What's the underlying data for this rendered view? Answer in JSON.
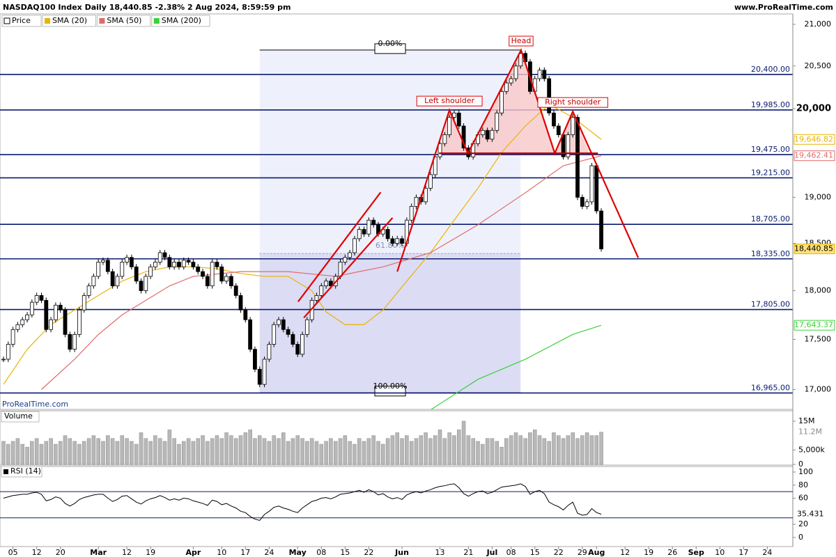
{
  "chart_data": {
    "type": "candlestick",
    "title": "NASDAQ100 Index Daily 18,440.85 -2.38% 2 Aug 2024, 8:59:59 pm",
    "site": "www.ProRealTime.com",
    "watermark": "ProRealTime.com",
    "log": true,
    "ylim": [
      16805,
      21127
    ],
    "yticks": [
      {
        "value": 21000,
        "label": "21,000"
      },
      {
        "value": 20500,
        "label": "20,500"
      },
      {
        "value": 20000,
        "label": "20,000"
      },
      {
        "value": 19000,
        "label": "19,000"
      },
      {
        "value": 18500,
        "label": "18,500"
      },
      {
        "value": 18000,
        "label": "18,000"
      },
      {
        "value": 17500,
        "label": "17,500"
      },
      {
        "value": 17000,
        "label": "17,000"
      }
    ],
    "xticks": [
      {
        "value": 2,
        "label": "05"
      },
      {
        "value": 7,
        "label": "12"
      },
      {
        "value": 12,
        "label": "20"
      },
      {
        "value": 20,
        "label": "Mar"
      },
      {
        "value": 26,
        "label": "12"
      },
      {
        "value": 31,
        "label": "19"
      },
      {
        "value": 40,
        "label": "Apr"
      },
      {
        "value": 46,
        "label": "10"
      },
      {
        "value": 51,
        "label": "17"
      },
      {
        "value": 56,
        "label": "24"
      },
      {
        "value": 62,
        "label": "May"
      },
      {
        "value": 67,
        "label": "08"
      },
      {
        "value": 72,
        "label": "15"
      },
      {
        "value": 77,
        "label": "22"
      },
      {
        "value": 84,
        "label": "Jun"
      },
      {
        "value": 92,
        "label": "13"
      },
      {
        "value": 98,
        "label": "21"
      },
      {
        "value": 103,
        "label": "Jul"
      },
      {
        "value": 107,
        "label": "08"
      },
      {
        "value": 112,
        "label": "15"
      },
      {
        "value": 117,
        "label": "22"
      },
      {
        "value": 122,
        "label": "29"
      },
      {
        "value": 125,
        "label": "Aug"
      },
      {
        "value": 131,
        "label": "12"
      },
      {
        "value": 136,
        "label": "19"
      },
      {
        "value": 141,
        "label": "26"
      },
      {
        "value": 146,
        "label": "Sep"
      },
      {
        "value": 151,
        "label": "10"
      },
      {
        "value": 156,
        "label": "17"
      },
      {
        "value": 161,
        "label": "24"
      }
    ],
    "series": [
      {
        "name": "Price",
        "up_color": "#ffffff",
        "down_color": "#000000",
        "last_label": "18,440.85",
        "values": [
          17300,
          17450,
          17600,
          17650,
          17700,
          17750,
          17880,
          17950,
          17900,
          17600,
          17700,
          17850,
          17800,
          17550,
          17400,
          17550,
          17800,
          17950,
          18050,
          18150,
          18300,
          18320,
          18200,
          18050,
          18150,
          18300,
          18350,
          18250,
          18100,
          18000,
          18150,
          18250,
          18300,
          18400,
          18350,
          18250,
          18300,
          18250,
          18320,
          18300,
          18250,
          18200,
          18150,
          18050,
          18300,
          18250,
          18100,
          18150,
          18050,
          17950,
          17800,
          17700,
          17400,
          17200,
          17050,
          17300,
          17450,
          17650,
          17700,
          17600,
          17550,
          17450,
          17350,
          17550,
          17700,
          17900,
          17950,
          18050,
          18100,
          18050,
          18150,
          18300,
          18350,
          18400,
          18550,
          18650,
          18600,
          18750,
          18700,
          18600,
          18650,
          18550,
          18500,
          18550,
          18500,
          18750,
          18900,
          19000,
          18950,
          19100,
          19250,
          19450,
          19600,
          19700,
          19900,
          19950,
          19800,
          19550,
          19450,
          19600,
          19700,
          19750,
          19650,
          19750,
          19950,
          20200,
          20300,
          20350,
          20500,
          20650,
          20550,
          20200,
          20350,
          20450,
          20350,
          19950,
          19800,
          19700,
          19450,
          19700,
          19900,
          19000,
          18900,
          18950,
          19350,
          18850,
          18440.85
        ]
      },
      {
        "name": "SMA (20)",
        "color": "#e8b400",
        "last_label": "19,646.82",
        "x": [
          0,
          5,
          10,
          15,
          20,
          25,
          30,
          35,
          40,
          45,
          50,
          55,
          60,
          65,
          68,
          72,
          76,
          80,
          85,
          90,
          95,
          100,
          105,
          110,
          115,
          120,
          126
        ],
        "values": [
          17050,
          17400,
          17650,
          17800,
          17950,
          18100,
          18200,
          18250,
          18250,
          18230,
          18180,
          18150,
          18150,
          18000,
          17780,
          17650,
          17650,
          17800,
          18100,
          18400,
          18750,
          19100,
          19500,
          19800,
          20050,
          19900,
          19646.82
        ]
      },
      {
        "name": "SMA (50)",
        "color": "#e06b6b",
        "last_label": "19,462.41",
        "x": [
          8,
          15,
          20,
          25,
          30,
          35,
          40,
          50,
          60,
          70,
          80,
          90,
          100,
          110,
          118,
          126
        ],
        "values": [
          17000,
          17300,
          17550,
          17750,
          17900,
          18050,
          18150,
          18200,
          18200,
          18150,
          18250,
          18400,
          18700,
          19050,
          19350,
          19462.41
        ]
      },
      {
        "name": "SMA (200)",
        "color": "#3bd13b",
        "last_label": "17,643.37",
        "x": [
          90,
          100,
          110,
          120,
          126
        ],
        "values": [
          16800,
          17100,
          17300,
          17550,
          17643.37
        ]
      }
    ],
    "levels": [
      {
        "value": 20400,
        "label": "20,400.00"
      },
      {
        "value": 19985,
        "label": "19,985.00"
      },
      {
        "value": 19475,
        "label": "19,475.00"
      },
      {
        "value": 19215,
        "label": "19,215.00"
      },
      {
        "value": 18705,
        "label": "18,705.00"
      },
      {
        "value": 18335,
        "label": "18,335.00"
      },
      {
        "value": 17805,
        "label": "17,805.00"
      },
      {
        "value": 16965,
        "label": "16,965.00"
      }
    ],
    "fib": {
      "start": 54,
      "end": 109,
      "high": 20690,
      "low": 16970,
      "levels": [
        {
          "value": 0,
          "label": "0.00%"
        },
        {
          "value": 61.8,
          "label": "61.80%"
        },
        {
          "value": 100,
          "label": "100.00%"
        }
      ]
    },
    "trend_lines": [
      {
        "points": [
          [
            62.1,
            17886
          ],
          [
            79.5,
            19055
          ]
        ]
      },
      {
        "points": [
          [
            63.3,
            17720
          ],
          [
            82,
            18775
          ]
        ]
      },
      {
        "points": [
          [
            83,
            18200
          ],
          [
            94,
            19983
          ],
          [
            97.9,
            19490
          ],
          [
            109.1,
            20689
          ],
          [
            116.2,
            19490
          ],
          [
            120,
            19967
          ],
          [
            133.8,
            18346
          ]
        ]
      }
    ],
    "neckline": [
      [
        91.8,
        19490
      ],
      [
        125.3,
        19490
      ]
    ],
    "triangles": [
      [
        [
          91.8,
          19490
        ],
        [
          94,
          19983
        ],
        [
          97.9,
          19490
        ]
      ],
      [
        [
          97.9,
          19490
        ],
        [
          109.1,
          20689
        ],
        [
          116.2,
          19490
        ]
      ],
      [
        [
          116.2,
          19490
        ],
        [
          120,
          19967
        ],
        [
          123.5,
          19490
        ]
      ]
    ],
    "annotations": [
      {
        "text": "Left shoulder",
        "at": [
          94,
          19983
        ]
      },
      {
        "text": "Head",
        "at": [
          109.1,
          20689
        ]
      },
      {
        "text": "Right shoulder",
        "at": [
          120,
          19967
        ]
      }
    ],
    "volume": {
      "name": "Volume",
      "color": "#b8b8b8",
      "last_label": "11.2M",
      "ylim": [
        0,
        18600000
      ],
      "yticks": [
        {
          "value": 15000000,
          "label": "15M"
        },
        {
          "value": 5000000,
          "label": "5,000k"
        },
        0
      ],
      "values": [
        8000000,
        7000000,
        8000000,
        9000000,
        7000000,
        6000000,
        8000000,
        9000000,
        7000000,
        8000000,
        9000000,
        7000000,
        8000000,
        10000000,
        9000000,
        8000000,
        7000000,
        8000000,
        9000000,
        10000000,
        9000000,
        8000000,
        10000000,
        9000000,
        8000000,
        10000000,
        9000000,
        8000000,
        7000000,
        11000000,
        9000000,
        8000000,
        10000000,
        9000000,
        8000000,
        12000000,
        9000000,
        7000000,
        8000000,
        9000000,
        8000000,
        9000000,
        10000000,
        8000000,
        9000000,
        10000000,
        9000000,
        11000000,
        10000000,
        9000000,
        10000000,
        11000000,
        12000000,
        9000000,
        10000000,
        9000000,
        8000000,
        10000000,
        9000000,
        11000000,
        8000000,
        9000000,
        10000000,
        9000000,
        8000000,
        9000000,
        8000000,
        7000000,
        8000000,
        9000000,
        8000000,
        9000000,
        10000000,
        8000000,
        7000000,
        9000000,
        8000000,
        9000000,
        10000000,
        8000000,
        7000000,
        9000000,
        10000000,
        11000000,
        9000000,
        10000000,
        8000000,
        9000000,
        10000000,
        11000000,
        9000000,
        10000000,
        12000000,
        9000000,
        11000000,
        10000000,
        12000000,
        15000000,
        10000000,
        9000000,
        8000000,
        7000000,
        9000000,
        9000000,
        8000000,
        6000000,
        9000000,
        10000000,
        11000000,
        10000000,
        9000000,
        11000000,
        12000000,
        10000000,
        9000000,
        8000000,
        11000000,
        10000000,
        9000000,
        10000000,
        11000000,
        9000000,
        10000000,
        11000000,
        10000000,
        10000000,
        11200000
      ]
    },
    "rsi": {
      "name": "RSI (14)",
      "color": "#000000",
      "ylim": [
        -14,
        108.5
      ],
      "yticks": [
        100,
        80,
        60,
        20,
        0
      ],
      "bands": [
        70,
        30
      ],
      "values": [
        60,
        62,
        64,
        65,
        66,
        66,
        68,
        69,
        66,
        56,
        58,
        62,
        60,
        52,
        48,
        52,
        58,
        61,
        63,
        65,
        66,
        66,
        60,
        55,
        58,
        63,
        64,
        59,
        54,
        51,
        56,
        59,
        61,
        64,
        61,
        57,
        59,
        57,
        60,
        59,
        56,
        54,
        52,
        49,
        57,
        55,
        50,
        52,
        48,
        45,
        40,
        38,
        32,
        28,
        26,
        35,
        40,
        46,
        48,
        45,
        43,
        40,
        38,
        45,
        50,
        55,
        57,
        60,
        61,
        59,
        62,
        66,
        67,
        68,
        70,
        72,
        69,
        73,
        70,
        65,
        67,
        62,
        59,
        61,
        58,
        65,
        68,
        70,
        68,
        71,
        73,
        76,
        78,
        79,
        81,
        82,
        76,
        67,
        63,
        67,
        70,
        71,
        67,
        69,
        73,
        77,
        78,
        79,
        80,
        82,
        78,
        66,
        70,
        72,
        67,
        54,
        50,
        47,
        42,
        49,
        54,
        37,
        34,
        35,
        44,
        38,
        35.431
      ]
    }
  }
}
